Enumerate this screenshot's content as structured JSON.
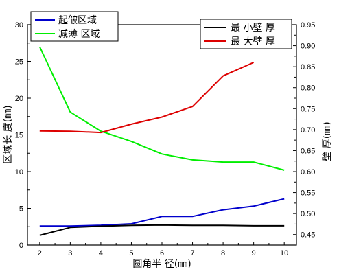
{
  "chart_data": {
    "type": "line",
    "title": "",
    "x": [
      2,
      3,
      4,
      5,
      6,
      7,
      8,
      9,
      10
    ],
    "xlabel": "圆角半 径(㎜)",
    "xlim": [
      1.6,
      10.4
    ],
    "xticks": [
      2,
      3,
      4,
      5,
      6,
      7,
      8,
      9,
      10
    ],
    "y_left": {
      "label": "区域长 度(㎜)",
      "lim": [
        0,
        30
      ],
      "ticks": [
        0,
        5,
        10,
        15,
        20,
        25,
        30
      ]
    },
    "y_right": {
      "label": "壁 厚(㎜)",
      "lim": [
        0.425,
        0.95
      ],
      "ticks": [
        0.45,
        0.5,
        0.55,
        0.6,
        0.65,
        0.7,
        0.75,
        0.8,
        0.85,
        0.9,
        0.95
      ],
      "tick_labels": [
        "0.45",
        "0.50",
        "0.55",
        "0.60",
        "0.65",
        "0.70",
        "0.75",
        "0.80",
        "0.85",
        "0.90",
        "0.95"
      ]
    },
    "series": [
      {
        "name": "起皱区域",
        "axis": "left",
        "color": "#0000cc",
        "x": [
          2,
          3,
          4,
          5,
          6,
          7,
          8,
          9,
          10
        ],
        "values": [
          2.6,
          2.6,
          2.7,
          2.9,
          3.9,
          3.9,
          4.8,
          5.3,
          6.3
        ]
      },
      {
        "name": "减薄 区域",
        "axis": "left",
        "color": "#00ee00",
        "x": [
          2,
          3,
          4,
          5,
          6,
          7,
          8,
          9,
          10
        ],
        "values": [
          27.0,
          18.1,
          15.5,
          14.1,
          12.4,
          11.6,
          11.3,
          11.3,
          10.2
        ]
      },
      {
        "name": "最 小壁 厚",
        "axis": "right",
        "color": "#000000",
        "x": [
          2,
          3,
          4,
          5,
          6,
          7,
          8,
          9,
          10
        ],
        "values": [
          0.448,
          0.467,
          0.47,
          0.472,
          0.473,
          0.472,
          0.472,
          0.471,
          0.471
        ]
      },
      {
        "name": "最 大壁 厚",
        "axis": "right",
        "color": "#dd0000",
        "x": [
          2,
          3,
          4,
          5,
          6,
          7,
          8,
          9
        ],
        "values": [
          0.697,
          0.696,
          0.693,
          0.713,
          0.73,
          0.755,
          0.828,
          0.86
        ]
      }
    ],
    "legends": [
      {
        "position": "top-left",
        "entries": [
          "起皱区域",
          "减薄 区域"
        ]
      },
      {
        "position": "top-right",
        "entries": [
          "最 小壁 厚",
          "最 大壁 厚"
        ]
      }
    ],
    "grid": false
  }
}
